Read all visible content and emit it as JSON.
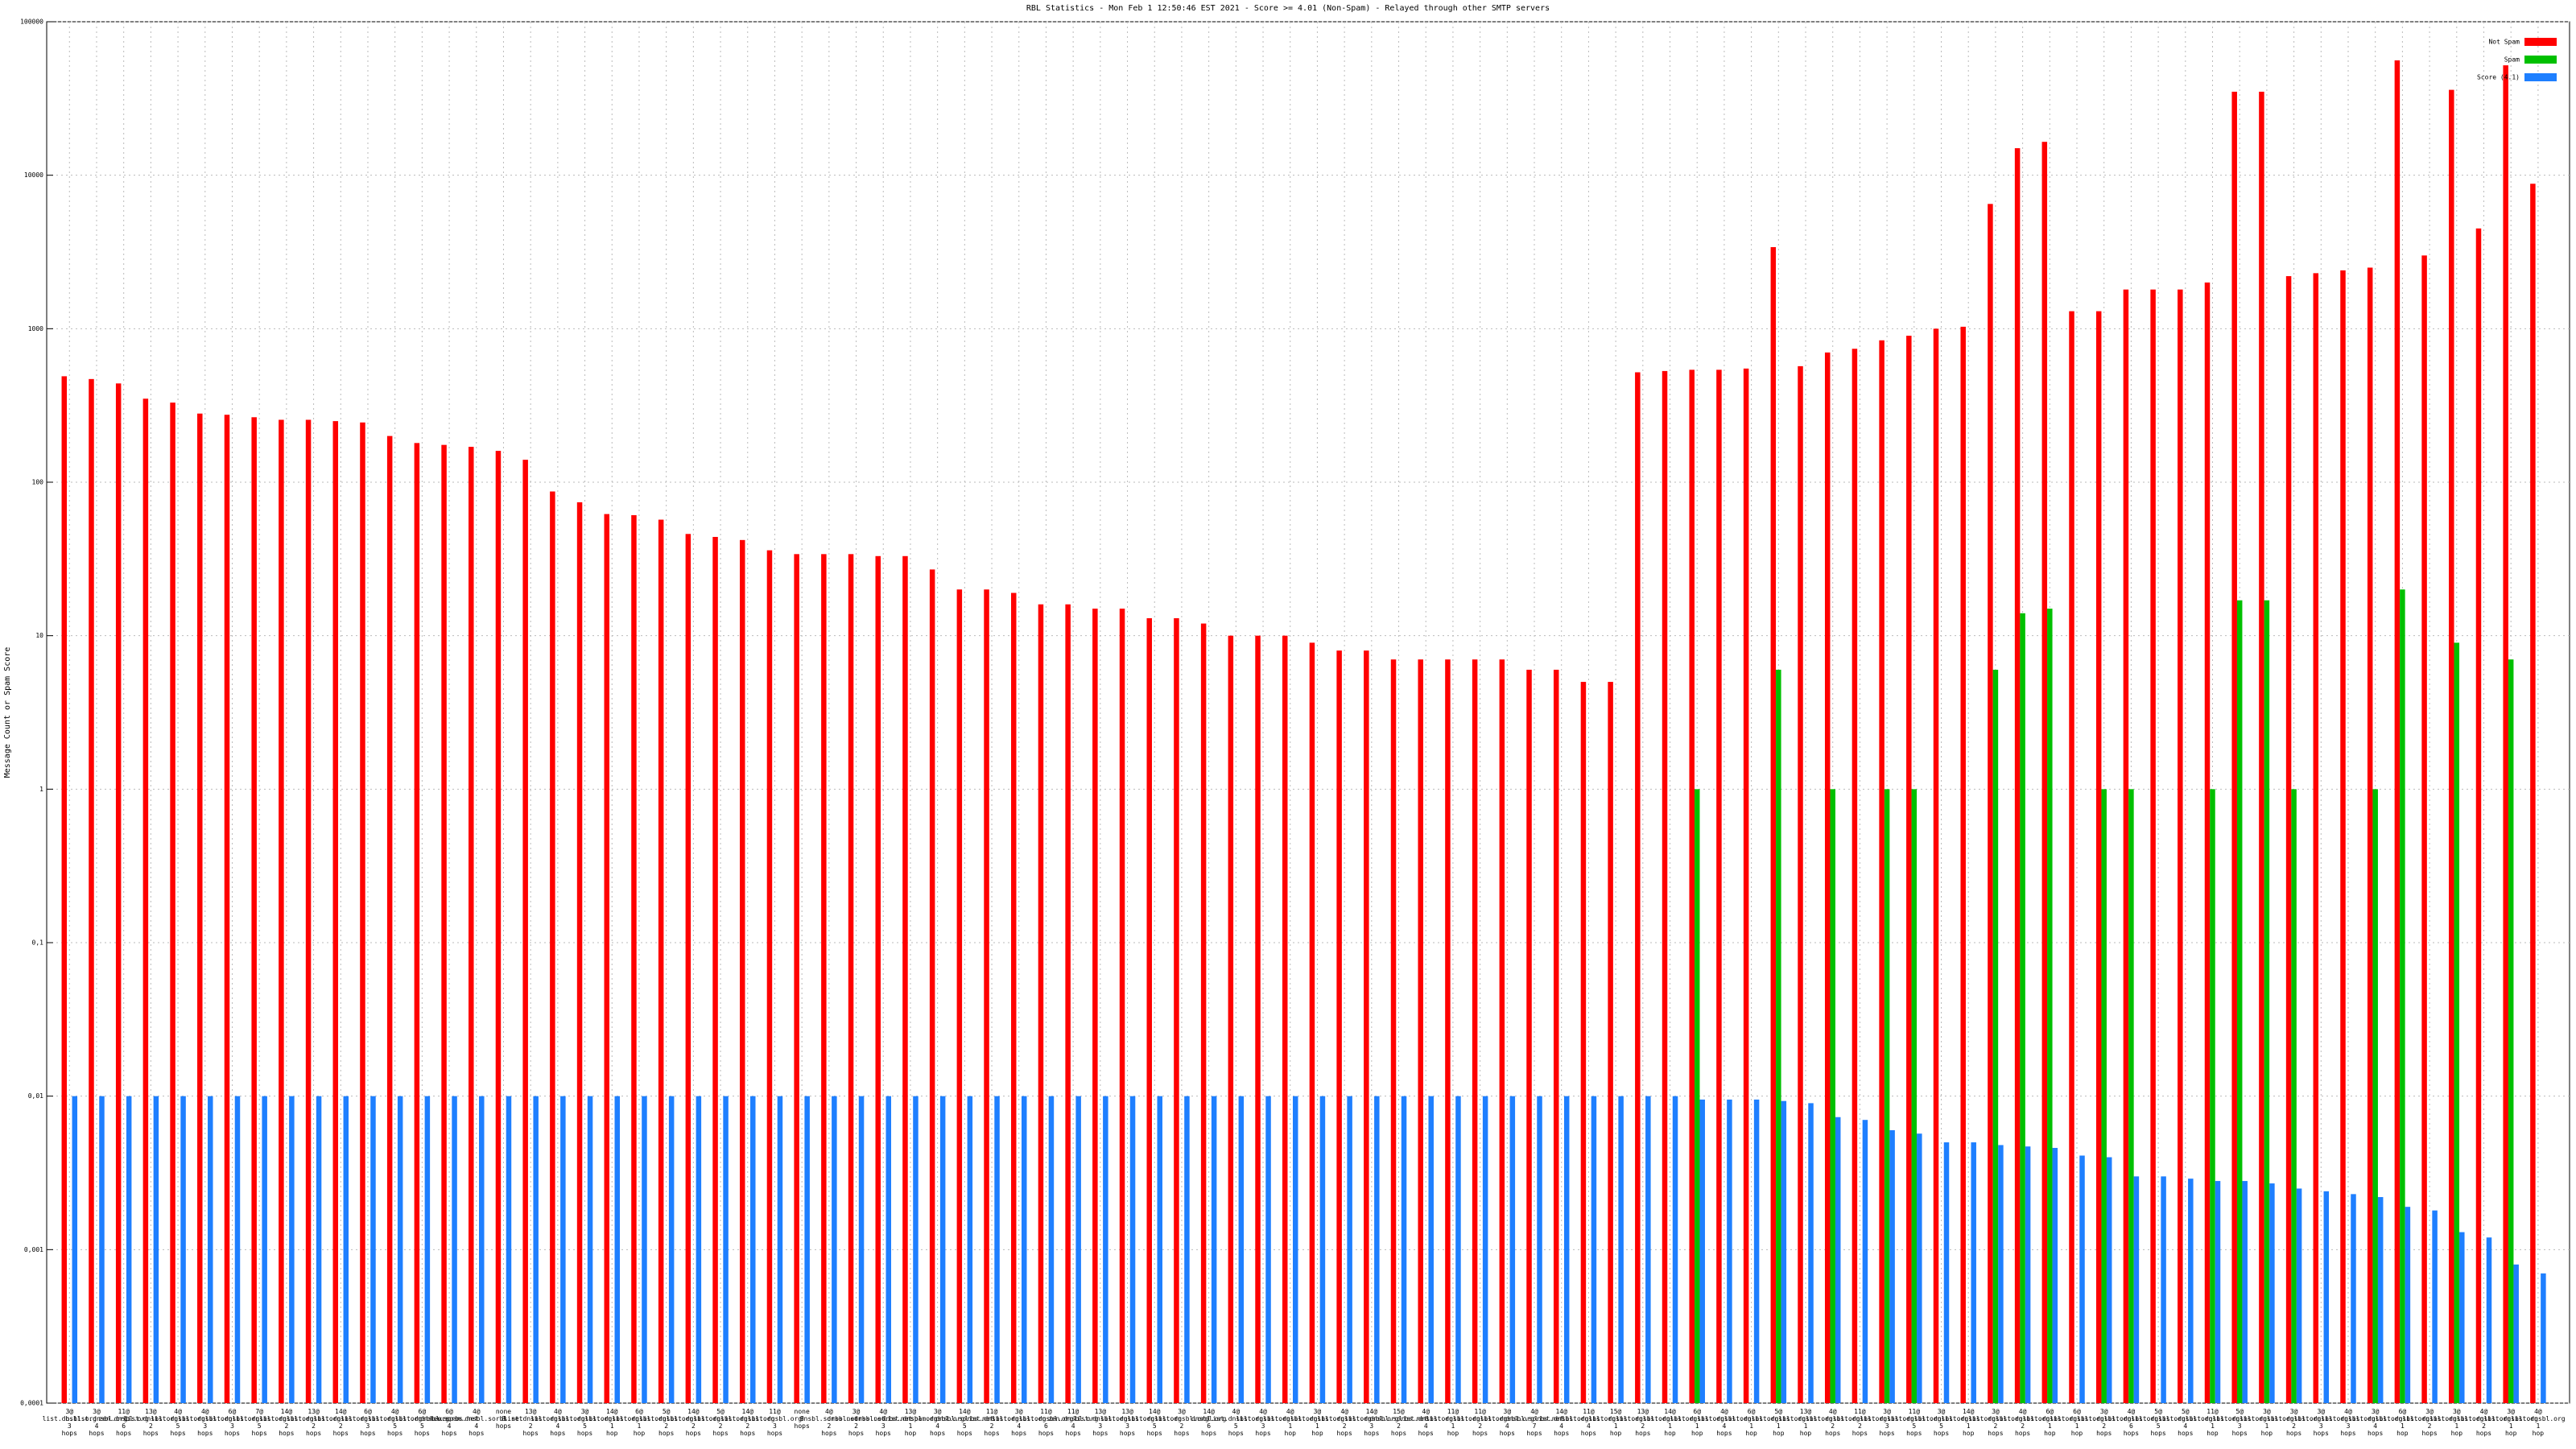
{
  "chart_data": {
    "type": "bar",
    "title": "RBL Statistics - Mon Feb  1 12:50:46 EST 2021 - Score >= 4.01 (Non-Spam) - Relayed through other SMTP servers",
    "y_label": "Message Count or Spam Score",
    "log_y": true,
    "grid": true,
    "legend": "upper right",
    "ylim": [
      0.0001,
      100000
    ],
    "yticks": [
      {
        "value": 0.0001,
        "label": "0,0001"
      },
      {
        "value": 0.001,
        "label": "0,001"
      },
      {
        "value": 0.01,
        "label": "0,01"
      },
      {
        "value": 0.1,
        "label": "0,1"
      },
      1,
      10,
      100,
      1000,
      10000,
      100000
    ],
    "categories": [
      "3@ list.dnsbl.org 3 hops",
      "3@ b.list.dnsbl.org 4 hops",
      "11@ zen.dnsbl.org 6 hops",
      "13@ list.dnsbl.org 2 hops",
      "4@ list.dnsbl.org 5 hops",
      "4@ list.dnsbl.org 3 hops",
      "6@ list.dnsbl.org 3 hops",
      "7@ list.dnsbl.org 5 hops",
      "14@ list.dnsbl.org 2 hops",
      "13@ list.dnsbl.org 2 hops",
      "14@ list.dnsbl.org 2 hops",
      "6@ list.dnsbl.org 3 hops",
      "4@ list.dnsbl.org 5 hops",
      "6@ list.dnsbl.org 5 hops",
      "6@ dnsbl.sorbs.net 4 hops",
      "4@ new.spam.dnsbl.sorbs.net 4 hops",
      "none 8 hops",
      "13@ list.dnsbl.org 2 hops",
      "4@ list.dnsbl.org 4 hops",
      "3@ list.dnsbl.org 5 hops",
      "14@ list.dnsbl.org 1 hop",
      "6@ list.dnsbl.org 1 hop",
      "5@ list.dnsbl.org 2 hops",
      "14@ list.dnsbl.org 2 hops",
      "5@ list.dnsbl.org 2 hops",
      "14@ list.dnsbl.org 2 hops",
      "11@ list.dnsbl.org 3 hops",
      "none 9 hops",
      "4@ dnsbl.sorbs.net 2 hops",
      "3@ dnsbl.sorbs.net 2 hops",
      "4@ dnsbl.sorbs.net 3 hops",
      "13@ list.dnsbl.org 1 hop",
      "3@ spam.dnsbl.org 4 hops",
      "14@ dnsbl.sorbs.net 5 hops",
      "11@ list.dnsbl.org 2 hops",
      "3@ list.dnsbl.org 4 hops",
      "11@ list.dnsbl.org 6 hops",
      "11@ zen.dnsbl.org 4 hops",
      "13@ list.dnsbl.org 3 hops",
      "13@ list.dnsbl.org 3 hops",
      "14@ list.dnsbl.org 5 hops",
      "3@ list.dnsbl.org 2 hops",
      "14@ dnsbl.org 6 hops",
      "4@ list.dnsbl.org 5 hops",
      "4@ list.dnsbl.org 3 hops",
      "4@ list.dnsbl.org 1 hop",
      "3@ list.dnsbl.org 1 hop",
      "4@ list.dnsbl.org 2 hops",
      "14@ list.dnsbl.org 3 hops",
      "15@ dnsbl.sorbs.net 2 hops",
      "4@ list.dnsbl.org 4 hops",
      "11@ list.dnsbl.org 1 hop",
      "11@ list.dnsbl.org 2 hops",
      "3@ list.dnsbl.org 4 hops",
      "4@ dnsbl.sorbs.net 7 hops",
      "14@ list.dnsbl.org 4 hops",
      "11@ list.dnsbl.org 4 hops",
      "15@ list.dnsbl.org 1 hop",
      "13@ list.dnsbl.org 2 hops",
      "14@ list.dnsbl.org 1 hop",
      "6@ list.dnsbl.org 1 hop",
      "4@ list.dnsbl.org 4 hops",
      "6@ list.dnsbl.org 1 hop",
      "5@ list.dnsbl.org 1 hop",
      "13@ list.dnsbl.org 1 hop",
      "4@ list.dnsbl.org 2 hops",
      "11@ list.dnsbl.org 2 hops",
      "3@ list.dnsbl.org 3 hops",
      "11@ list.dnsbl.org 5 hops",
      "3@ list.dnsbl.org 5 hops",
      "14@ list.dnsbl.org 1 hop",
      "3@ list.dnsbl.org 2 hops",
      "4@ list.dnsbl.org 2 hops",
      "6@ list.dnsbl.org 1 hop",
      "6@ list.dnsbl.org 1 hop",
      "3@ list.dnsbl.org 2 hops",
      "4@ list.dnsbl.org 6 hops",
      "5@ list.dnsbl.org 5 hops",
      "5@ list.dnsbl.org 4 hops",
      "11@ list.dnsbl.org 1 hop",
      "5@ list.dnsbl.org 3 hops",
      "3@ list.dnsbl.org 1 hop",
      "3@ list.dnsbl.org 2 hops",
      "3@ list.dnsbl.org 3 hops",
      "4@ list.dnsbl.org 3 hops",
      "3@ list.dnsbl.org 4 hops",
      "6@ list.dnsbl.org 1 hop",
      "3@ list.dnsbl.org 2 hops",
      "3@ list.dnsbl.org 1 hop",
      "4@ list.dnsbl.org 2 hops",
      "3@ list.dnsbl.org 1 hop",
      "4@ list.dnsbl.org 1 hop"
    ],
    "series": [
      {
        "name": "Not Spam",
        "color": "#ff0000",
        "values": [
          490,
          470,
          440,
          350,
          330,
          280,
          275,
          265,
          255,
          255,
          250,
          245,
          200,
          180,
          175,
          170,
          160,
          140,
          87,
          74,
          62,
          61,
          57,
          46,
          44,
          42,
          36,
          34,
          34,
          34,
          33,
          33,
          27,
          20,
          20,
          19,
          16,
          16,
          15,
          15,
          13,
          13,
          12,
          10,
          10,
          10,
          9,
          8,
          8,
          7,
          7,
          7,
          7,
          7,
          6,
          6,
          5,
          5,
          520,
          530,
          540,
          540,
          550,
          3400,
          570,
          700,
          740,
          840,
          900,
          1000,
          1030,
          6500,
          15000,
          16500,
          1300,
          1300,
          1800,
          1800,
          1800,
          2000,
          35000,
          35000,
          2200,
          2300,
          2400,
          2500,
          56000,
          3000,
          36000,
          4500,
          52000,
          8800
        ]
      },
      {
        "name": "Spam",
        "color": "#00c000",
        "values": [
          null,
          null,
          null,
          null,
          null,
          null,
          null,
          null,
          null,
          null,
          null,
          null,
          null,
          null,
          null,
          null,
          null,
          null,
          null,
          null,
          null,
          null,
          null,
          null,
          null,
          null,
          null,
          null,
          null,
          null,
          null,
          null,
          null,
          null,
          null,
          null,
          null,
          null,
          null,
          null,
          null,
          null,
          null,
          null,
          null,
          null,
          null,
          null,
          null,
          null,
          null,
          null,
          null,
          null,
          null,
          null,
          null,
          null,
          null,
          null,
          1,
          null,
          null,
          6,
          null,
          1,
          null,
          1,
          1,
          null,
          null,
          6,
          14,
          15,
          null,
          1,
          1,
          null,
          null,
          1,
          17,
          17,
          1,
          null,
          null,
          1,
          20,
          null,
          9,
          null,
          7,
          null
        ]
      },
      {
        "name": "Score (4.1)",
        "color": "#1e7fff",
        "values": [
          0.01,
          0.01,
          0.01,
          0.01,
          0.01,
          0.01,
          0.01,
          0.01,
          0.01,
          0.01,
          0.01,
          0.01,
          0.01,
          0.01,
          0.01,
          0.01,
          0.01,
          0.01,
          0.01,
          0.01,
          0.01,
          0.01,
          0.01,
          0.01,
          0.01,
          0.01,
          0.01,
          0.01,
          0.01,
          0.01,
          0.01,
          0.01,
          0.01,
          0.01,
          0.01,
          0.01,
          0.01,
          0.01,
          0.01,
          0.01,
          0.01,
          0.01,
          0.01,
          0.01,
          0.01,
          0.01,
          0.01,
          0.01,
          0.01,
          0.01,
          0.01,
          0.01,
          0.01,
          0.01,
          0.01,
          0.01,
          0.01,
          0.01,
          0.01,
          0.01,
          0.0095,
          0.0095,
          0.0095,
          0.0093,
          0.009,
          0.0073,
          0.007,
          0.006,
          0.0057,
          0.005,
          0.005,
          0.0048,
          0.0047,
          0.0046,
          0.0041,
          0.004,
          0.003,
          0.003,
          0.0029,
          0.0028,
          0.0028,
          0.0027,
          0.0025,
          0.0024,
          0.0023,
          0.0022,
          0.0019,
          0.0018,
          0.0013,
          0.0012,
          0.0008,
          0.0007
        ]
      }
    ]
  }
}
